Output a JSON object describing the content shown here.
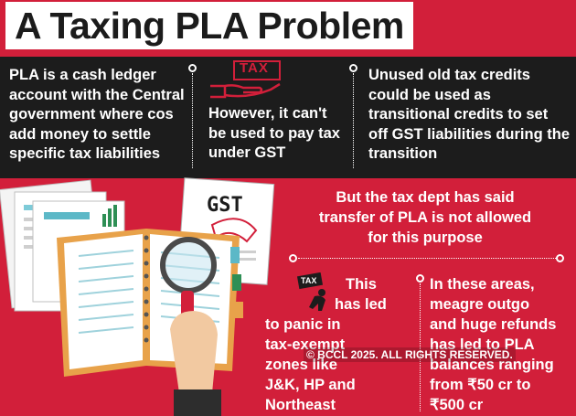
{
  "title": "A Taxing PLA Problem",
  "band": {
    "col1": [
      "PLA is a cash ledger",
      "account with the Central",
      "government where cos",
      "add money to settle",
      "specific tax liabilities"
    ],
    "tax_label": "TAX",
    "col2": [
      "However, it can't",
      "be used to pay tax",
      "under GST"
    ],
    "col3": [
      "Unused old tax credits",
      "could be used as",
      "transitional credits to set",
      "off GST liabilities during the",
      "transition"
    ]
  },
  "illustration": {
    "gst_label": "GST",
    "tax_bag_label": "TAX"
  },
  "main_message": [
    "But the tax dept has said",
    "transfer of PLA is not allowed",
    "for this purpose"
  ],
  "left_message": [
    "This",
    "has led",
    "to panic in",
    "tax-exempt",
    "zones like",
    "J&K, HP and",
    "Northeast"
  ],
  "right_message": [
    "In these areas,",
    "meagre outgo",
    "and huge refunds",
    "has led to PLA",
    "balances ranging",
    "from ₹50 cr to",
    "₹500 cr"
  ],
  "watermark": "© BCCL 2025. ALL RIGHTS RESERVED.",
  "colors": {
    "red": "#d21f3a",
    "dark": "#1c1c1c",
    "white": "#ffffff"
  }
}
